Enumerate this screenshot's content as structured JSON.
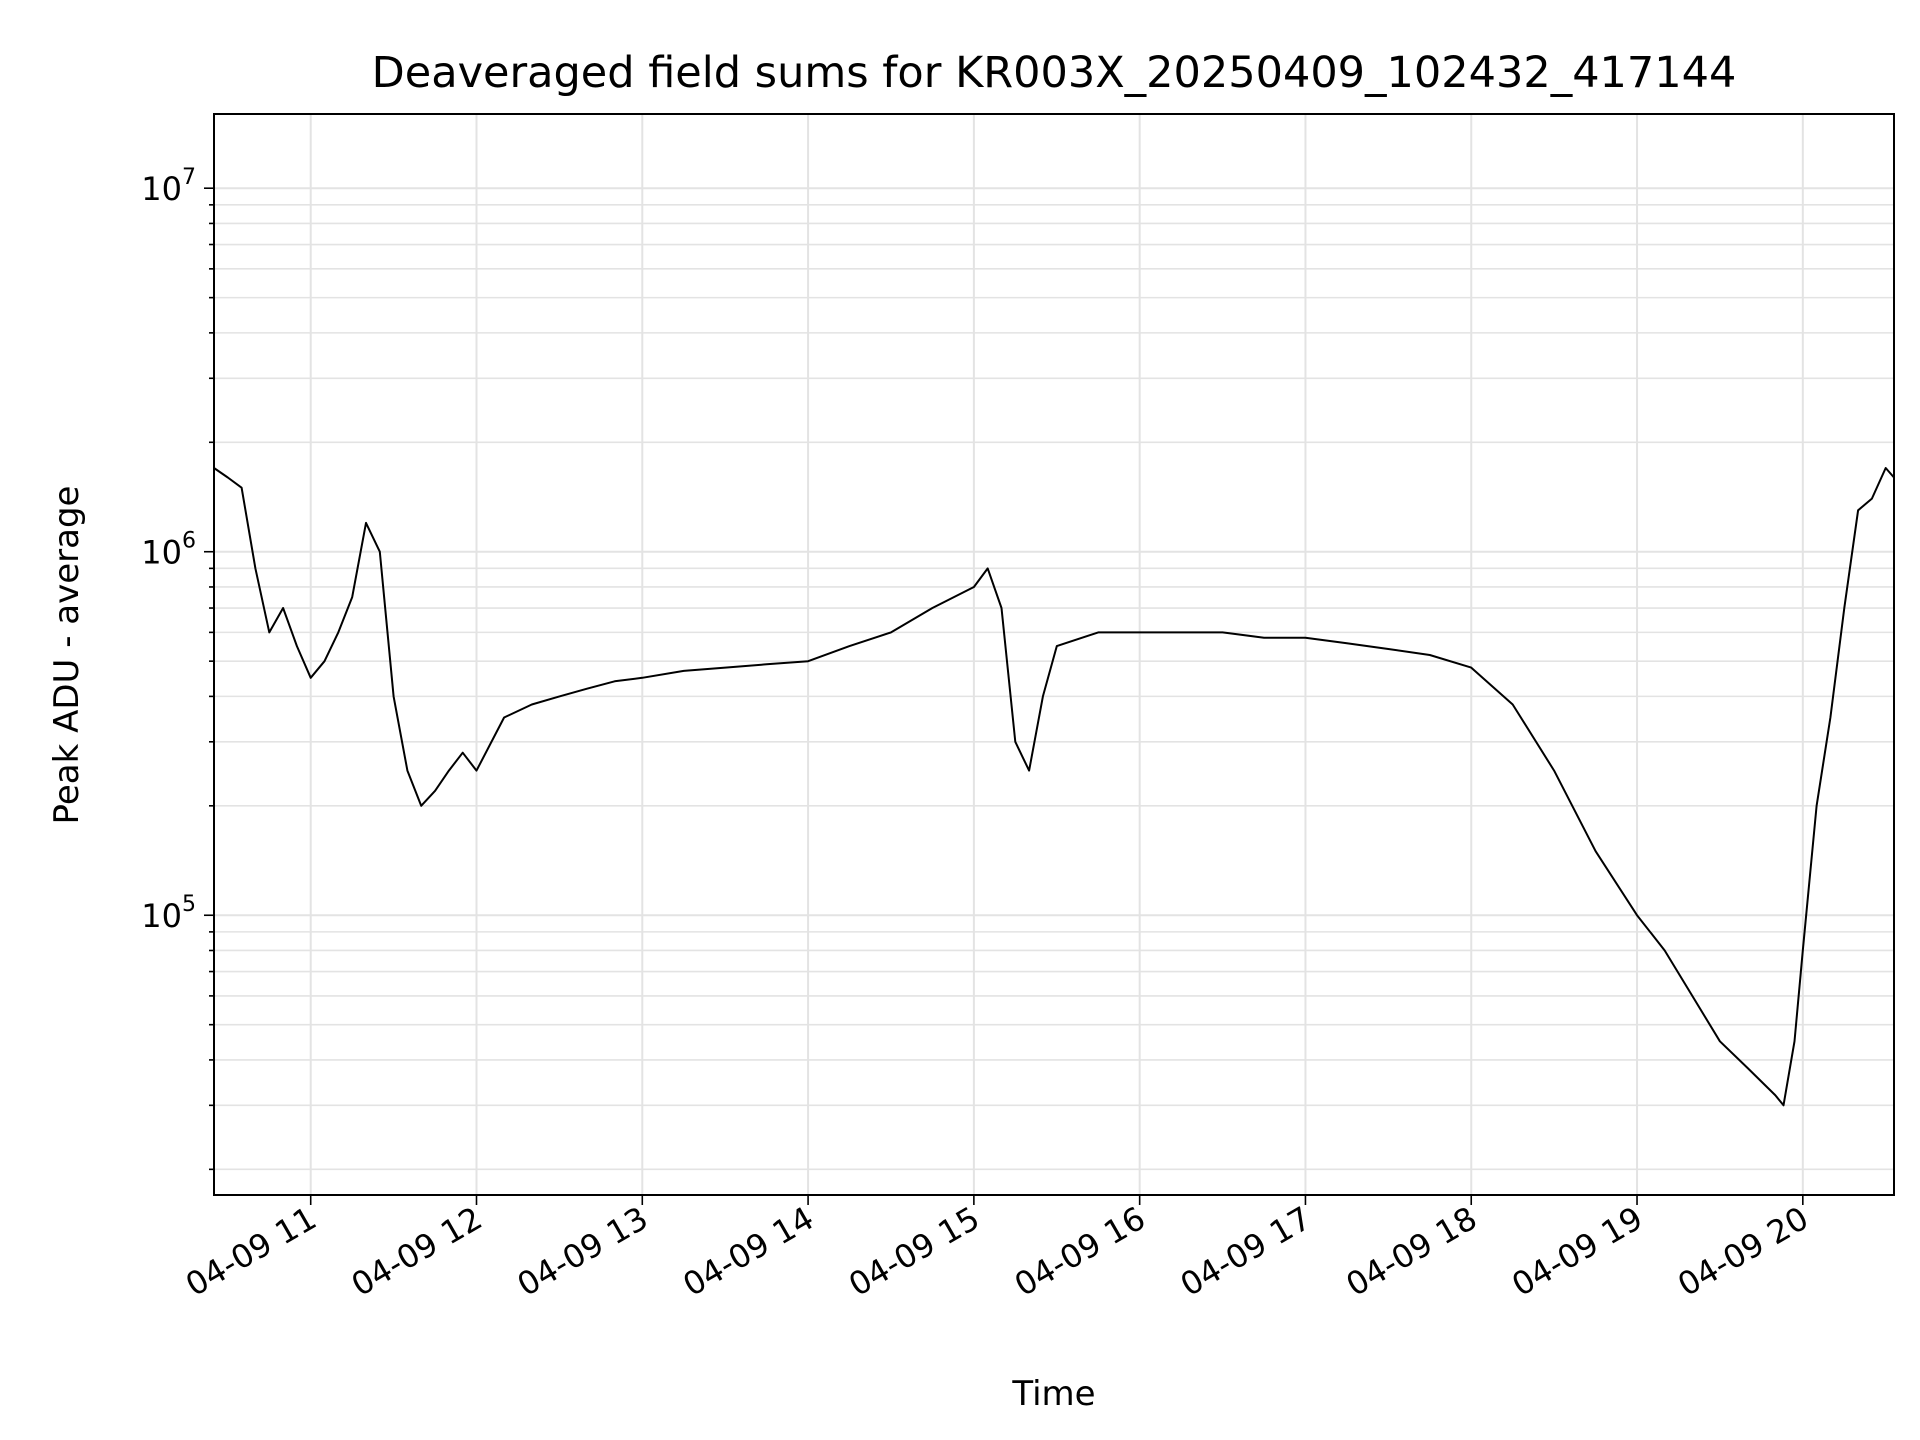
{
  "chart_data": {
    "type": "line",
    "title": "Deaveraged field sums for KR003X_20250409_102432_417144",
    "xlabel": "Time",
    "ylabel": "Peak ADU - average",
    "y_scale": "log",
    "ylim": [
      17000,
      16000000
    ],
    "x_range": [
      "2025-04-09T10:25",
      "2025-04-09T20:33"
    ],
    "grid": true,
    "x_ticks": [
      {
        "t": "2025-04-09T11:00",
        "label": "04-09 11"
      },
      {
        "t": "2025-04-09T12:00",
        "label": "04-09 12"
      },
      {
        "t": "2025-04-09T13:00",
        "label": "04-09 13"
      },
      {
        "t": "2025-04-09T14:00",
        "label": "04-09 14"
      },
      {
        "t": "2025-04-09T15:00",
        "label": "04-09 15"
      },
      {
        "t": "2025-04-09T16:00",
        "label": "04-09 16"
      },
      {
        "t": "2025-04-09T17:00",
        "label": "04-09 17"
      },
      {
        "t": "2025-04-09T18:00",
        "label": "04-09 18"
      },
      {
        "t": "2025-04-09T19:00",
        "label": "04-09 19"
      },
      {
        "t": "2025-04-09T20:00",
        "label": "04-09 20"
      }
    ],
    "y_ticks": [
      {
        "value": 100000,
        "base": "10",
        "exp": "5"
      },
      {
        "value": 1000000,
        "base": "10",
        "exp": "6"
      },
      {
        "value": 10000000,
        "base": "10",
        "exp": "7"
      }
    ],
    "series": [
      {
        "color": "#000000",
        "points": [
          [
            "2025-04-09T10:25",
            1700000
          ],
          [
            "2025-04-09T10:30",
            1600000
          ],
          [
            "2025-04-09T10:35",
            1500000
          ],
          [
            "2025-04-09T10:40",
            900000
          ],
          [
            "2025-04-09T10:45",
            600000
          ],
          [
            "2025-04-09T10:50",
            700000
          ],
          [
            "2025-04-09T10:55",
            550000
          ],
          [
            "2025-04-09T11:00",
            450000
          ],
          [
            "2025-04-09T11:05",
            500000
          ],
          [
            "2025-04-09T11:10",
            600000
          ],
          [
            "2025-04-09T11:15",
            750000
          ],
          [
            "2025-04-09T11:20",
            1200000
          ],
          [
            "2025-04-09T11:25",
            1000000
          ],
          [
            "2025-04-09T11:30",
            400000
          ],
          [
            "2025-04-09T11:35",
            250000
          ],
          [
            "2025-04-09T11:40",
            200000
          ],
          [
            "2025-04-09T11:45",
            220000
          ],
          [
            "2025-04-09T11:50",
            250000
          ],
          [
            "2025-04-09T11:55",
            280000
          ],
          [
            "2025-04-09T12:00",
            250000
          ],
          [
            "2025-04-09T12:10",
            350000
          ],
          [
            "2025-04-09T12:20",
            380000
          ],
          [
            "2025-04-09T12:30",
            400000
          ],
          [
            "2025-04-09T12:40",
            420000
          ],
          [
            "2025-04-09T12:50",
            440000
          ],
          [
            "2025-04-09T13:00",
            450000
          ],
          [
            "2025-04-09T13:15",
            470000
          ],
          [
            "2025-04-09T13:30",
            480000
          ],
          [
            "2025-04-09T13:45",
            490000
          ],
          [
            "2025-04-09T14:00",
            500000
          ],
          [
            "2025-04-09T14:15",
            550000
          ],
          [
            "2025-04-09T14:30",
            600000
          ],
          [
            "2025-04-09T14:45",
            700000
          ],
          [
            "2025-04-09T15:00",
            800000
          ],
          [
            "2025-04-09T15:05",
            900000
          ],
          [
            "2025-04-09T15:10",
            700000
          ],
          [
            "2025-04-09T15:15",
            300000
          ],
          [
            "2025-04-09T15:20",
            250000
          ],
          [
            "2025-04-09T15:25",
            400000
          ],
          [
            "2025-04-09T15:30",
            550000
          ],
          [
            "2025-04-09T15:45",
            600000
          ],
          [
            "2025-04-09T16:00",
            600000
          ],
          [
            "2025-04-09T16:15",
            600000
          ],
          [
            "2025-04-09T16:30",
            600000
          ],
          [
            "2025-04-09T16:45",
            580000
          ],
          [
            "2025-04-09T17:00",
            580000
          ],
          [
            "2025-04-09T17:15",
            560000
          ],
          [
            "2025-04-09T17:30",
            540000
          ],
          [
            "2025-04-09T17:45",
            520000
          ],
          [
            "2025-04-09T18:00",
            480000
          ],
          [
            "2025-04-09T18:15",
            380000
          ],
          [
            "2025-04-09T18:30",
            250000
          ],
          [
            "2025-04-09T18:45",
            150000
          ],
          [
            "2025-04-09T19:00",
            100000
          ],
          [
            "2025-04-09T19:10",
            80000
          ],
          [
            "2025-04-09T19:20",
            60000
          ],
          [
            "2025-04-09T19:30",
            45000
          ],
          [
            "2025-04-09T19:40",
            38000
          ],
          [
            "2025-04-09T19:50",
            32000
          ],
          [
            "2025-04-09T19:53",
            30000
          ],
          [
            "2025-04-09T19:57",
            45000
          ],
          [
            "2025-04-09T20:00",
            80000
          ],
          [
            "2025-04-09T20:05",
            200000
          ],
          [
            "2025-04-09T20:10",
            350000
          ],
          [
            "2025-04-09T20:15",
            700000
          ],
          [
            "2025-04-09T20:20",
            1300000
          ],
          [
            "2025-04-09T20:25",
            1400000
          ],
          [
            "2025-04-09T20:30",
            1700000
          ],
          [
            "2025-04-09T20:33",
            1600000
          ]
        ]
      }
    ]
  }
}
